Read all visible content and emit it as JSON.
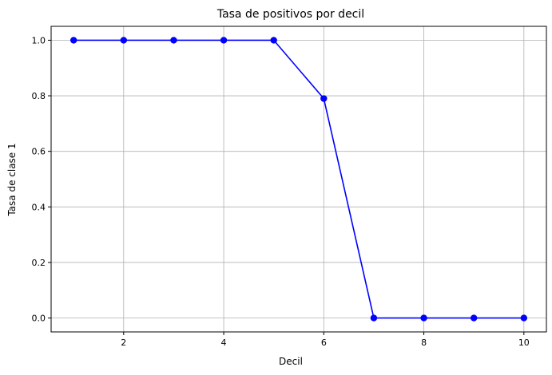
{
  "chart_data": {
    "type": "line",
    "title": "Tasa de positivos por decil",
    "xlabel": "Decil",
    "ylabel": "Tasa de clase 1",
    "x": [
      1,
      2,
      3,
      4,
      5,
      6,
      7,
      8,
      9,
      10
    ],
    "series": [
      {
        "values": [
          1.0,
          1.0,
          1.0,
          1.0,
          1.0,
          0.79,
          0.0,
          0.0,
          0.0,
          0.0
        ],
        "color": "#0000ff",
        "marker": "circle"
      }
    ],
    "xlim": [
      0.55,
      10.45
    ],
    "ylim": [
      -0.05,
      1.05
    ],
    "xticks": [
      2,
      4,
      6,
      8,
      10
    ],
    "xtick_labels": [
      "2",
      "4",
      "6",
      "8",
      "10"
    ],
    "yticks": [
      0.0,
      0.2,
      0.4,
      0.6,
      0.8,
      1.0
    ],
    "ytick_labels": [
      "0.0",
      "0.2",
      "0.4",
      "0.6",
      "0.8",
      "1.0"
    ],
    "grid": true,
    "legend": "none"
  }
}
